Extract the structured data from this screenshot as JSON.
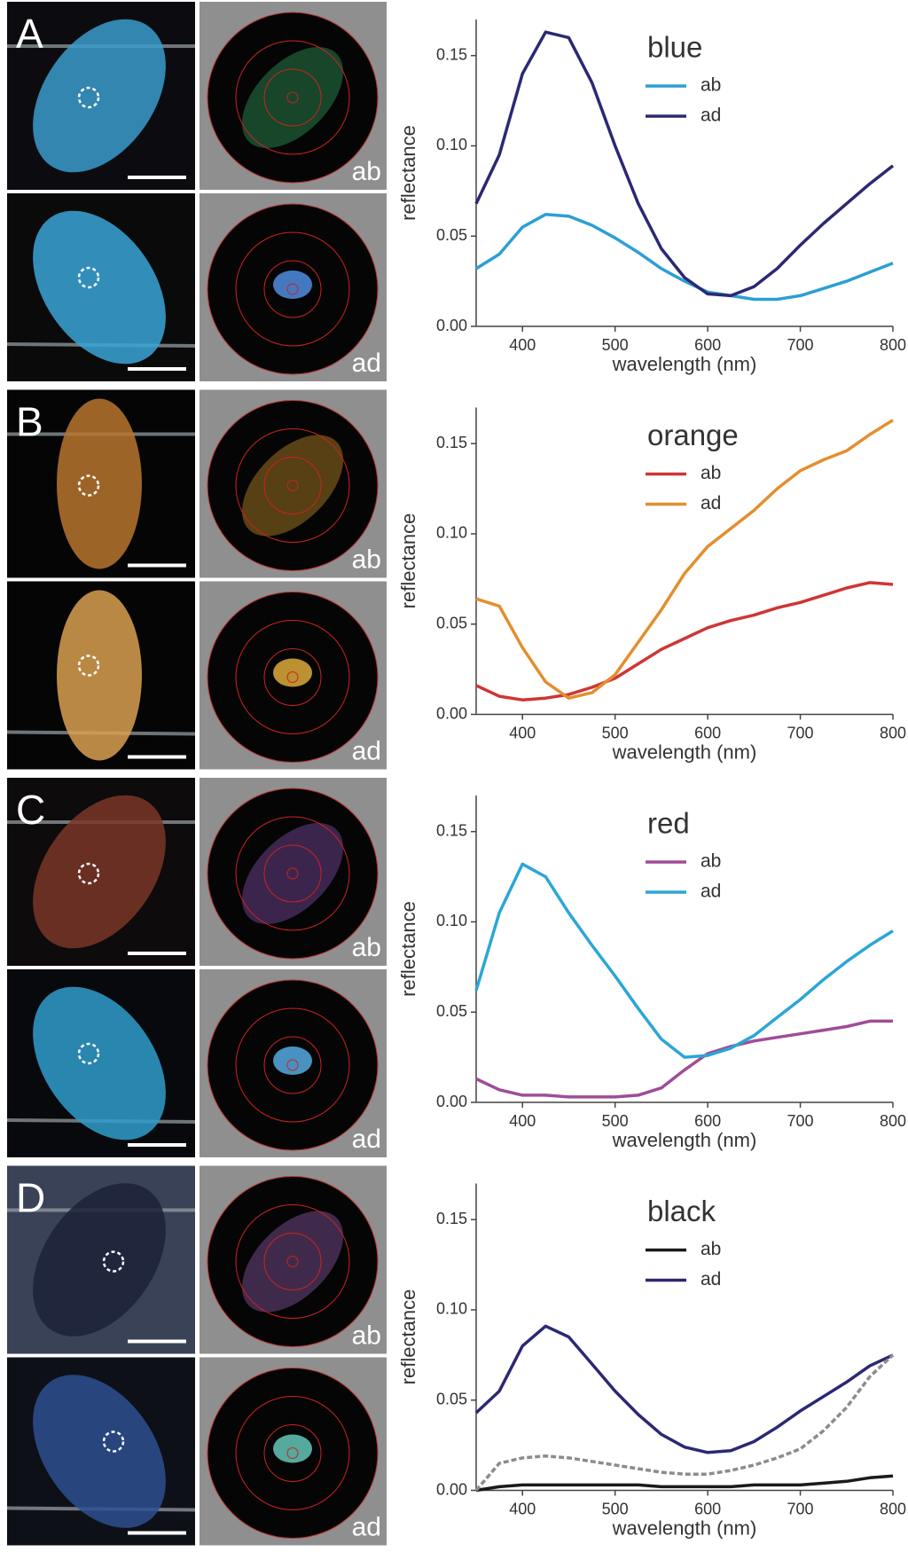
{
  "panels": [
    {
      "letter": "A",
      "image_labels": [
        "ab",
        "ad"
      ]
    },
    {
      "letter": "B",
      "image_labels": [
        "ab",
        "ad"
      ]
    },
    {
      "letter": "C",
      "image_labels": [
        "ab",
        "ad"
      ]
    },
    {
      "letter": "D",
      "image_labels": [
        "ab",
        "ad"
      ]
    }
  ],
  "chart_data": [
    {
      "type": "line",
      "title": "blue",
      "xlabel": "wavelength (nm)",
      "ylabel": "reflectance",
      "x": [
        350,
        375,
        400,
        425,
        450,
        475,
        500,
        525,
        550,
        575,
        600,
        625,
        650,
        675,
        700,
        725,
        750,
        775,
        800
      ],
      "series": [
        {
          "name": "ab",
          "color": "#2b9fd4",
          "values": [
            0.032,
            0.04,
            0.055,
            0.062,
            0.061,
            0.056,
            0.049,
            0.041,
            0.032,
            0.025,
            0.019,
            0.017,
            0.015,
            0.015,
            0.017,
            0.021,
            0.025,
            0.03,
            0.035
          ]
        },
        {
          "name": "ad",
          "color": "#2b2874",
          "values": [
            0.068,
            0.095,
            0.14,
            0.163,
            0.16,
            0.135,
            0.1,
            0.068,
            0.043,
            0.027,
            0.018,
            0.017,
            0.022,
            0.032,
            0.045,
            0.057,
            0.068,
            0.079,
            0.089
          ]
        }
      ],
      "xlim": [
        350,
        800
      ],
      "xticks": [
        400,
        500,
        600,
        700,
        800
      ],
      "ylim": [
        0,
        0.17
      ],
      "yticks": [
        {
          "value": 0,
          "label": "0.00"
        },
        {
          "value": 0.05,
          "label": "0.05"
        },
        {
          "value": 0.1,
          "label": "0.10"
        },
        {
          "value": 0.15,
          "label": "0.15"
        }
      ]
    },
    {
      "type": "line",
      "title": "orange",
      "xlabel": "wavelength (nm)",
      "ylabel": "reflectance",
      "x": [
        350,
        375,
        400,
        425,
        450,
        475,
        500,
        525,
        550,
        575,
        600,
        625,
        650,
        675,
        700,
        725,
        750,
        775,
        800
      ],
      "series": [
        {
          "name": "ab",
          "color": "#cf3535",
          "values": [
            0.016,
            0.01,
            0.008,
            0.009,
            0.011,
            0.015,
            0.02,
            0.028,
            0.036,
            0.042,
            0.048,
            0.052,
            0.055,
            0.059,
            0.062,
            0.066,
            0.07,
            0.073,
            0.072
          ]
        },
        {
          "name": "ad",
          "color": "#e48e2e",
          "values": [
            0.064,
            0.06,
            0.037,
            0.018,
            0.009,
            0.012,
            0.022,
            0.04,
            0.058,
            0.078,
            0.093,
            0.103,
            0.113,
            0.125,
            0.135,
            0.141,
            0.146,
            0.155,
            0.163
          ]
        }
      ],
      "xlim": [
        350,
        800
      ],
      "xticks": [
        400,
        500,
        600,
        700,
        800
      ],
      "ylim": [
        0,
        0.17
      ],
      "yticks": [
        {
          "value": 0,
          "label": "0.00"
        },
        {
          "value": 0.05,
          "label": "0.05"
        },
        {
          "value": 0.1,
          "label": "0.10"
        },
        {
          "value": 0.15,
          "label": "0.15"
        }
      ]
    },
    {
      "type": "line",
      "title": "red",
      "xlabel": "wavelength (nm)",
      "ylabel": "reflectance",
      "x": [
        350,
        375,
        400,
        425,
        450,
        475,
        500,
        525,
        550,
        575,
        600,
        625,
        650,
        675,
        700,
        725,
        750,
        775,
        800
      ],
      "series": [
        {
          "name": "ab",
          "color": "#a04c98",
          "values": [
            0.013,
            0.007,
            0.004,
            0.004,
            0.003,
            0.003,
            0.003,
            0.004,
            0.008,
            0.018,
            0.027,
            0.031,
            0.034,
            0.036,
            0.038,
            0.04,
            0.042,
            0.045,
            0.045
          ]
        },
        {
          "name": "ad",
          "color": "#2ba6d6",
          "values": [
            0.062,
            0.105,
            0.132,
            0.125,
            0.105,
            0.087,
            0.07,
            0.052,
            0.035,
            0.025,
            0.026,
            0.03,
            0.037,
            0.047,
            0.057,
            0.068,
            0.078,
            0.087,
            0.095
          ]
        }
      ],
      "xlim": [
        350,
        800
      ],
      "xticks": [
        400,
        500,
        600,
        700,
        800
      ],
      "ylim": [
        0,
        0.17
      ],
      "yticks": [
        {
          "value": 0,
          "label": "0.00"
        },
        {
          "value": 0.05,
          "label": "0.05"
        },
        {
          "value": 0.1,
          "label": "0.10"
        },
        {
          "value": 0.15,
          "label": "0.15"
        }
      ]
    },
    {
      "type": "line",
      "title": "black",
      "xlabel": "wavelength (nm)",
      "ylabel": "reflectance",
      "x": [
        350,
        375,
        400,
        425,
        450,
        475,
        500,
        525,
        550,
        575,
        600,
        625,
        650,
        675,
        700,
        725,
        750,
        775,
        800
      ],
      "series": [
        {
          "name": "ab",
          "color": "#1a1a1a",
          "values": [
            0.0,
            0.002,
            0.003,
            0.003,
            0.003,
            0.003,
            0.003,
            0.003,
            0.002,
            0.002,
            0.002,
            0.002,
            0.003,
            0.003,
            0.003,
            0.004,
            0.005,
            0.007,
            0.008
          ]
        },
        {
          "name": "ad",
          "color": "#2b2874",
          "values": [
            0.043,
            0.055,
            0.08,
            0.091,
            0.085,
            0.07,
            0.055,
            0.042,
            0.031,
            0.024,
            0.021,
            0.022,
            0.027,
            0.035,
            0.044,
            0.052,
            0.06,
            0.069,
            0.075
          ]
        },
        {
          "color": "#8c8c8c",
          "dashed": true,
          "values": [
            0.0,
            0.015,
            0.018,
            0.019,
            0.018,
            0.016,
            0.014,
            0.012,
            0.01,
            0.009,
            0.009,
            0.011,
            0.014,
            0.018,
            0.023,
            0.033,
            0.046,
            0.063,
            0.075
          ]
        }
      ],
      "xlim": [
        350,
        800
      ],
      "xticks": [
        400,
        500,
        600,
        700,
        800
      ],
      "ylim": [
        0,
        0.17
      ],
      "yticks": [
        {
          "value": 0,
          "label": "0.00"
        },
        {
          "value": 0.05,
          "label": "0.05"
        },
        {
          "value": 0.1,
          "label": "0.10"
        },
        {
          "value": 0.15,
          "label": "0.15"
        }
      ]
    }
  ]
}
